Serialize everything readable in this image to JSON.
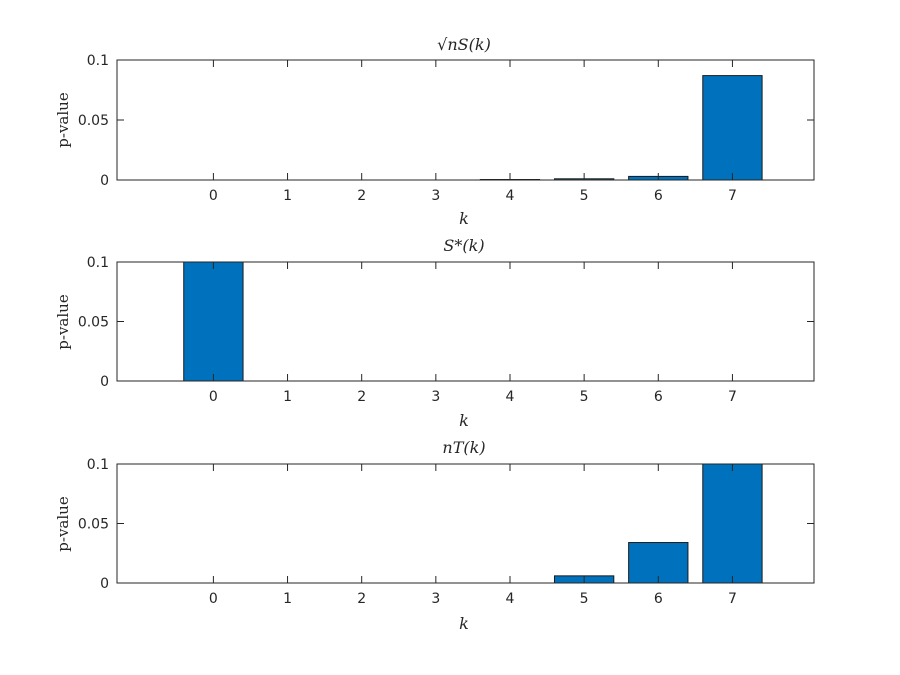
{
  "chart_data": [
    {
      "type": "bar",
      "title": "√nS(k)",
      "xlabel": "k",
      "ylabel": "p-value",
      "categories": [
        "0",
        "1",
        "2",
        "3",
        "4",
        "5",
        "6",
        "7"
      ],
      "values": [
        0,
        0,
        0,
        0,
        0.0004,
        0.001,
        0.003,
        0.087
      ],
      "xlim": [
        -1.3,
        8.1
      ],
      "ylim": [
        0,
        0.1
      ],
      "yticks": [
        0,
        0.05,
        0.1
      ],
      "ytick_labels": [
        "0",
        "0.05",
        "0.1"
      ],
      "bar_color": "#0072bd",
      "grid": false
    },
    {
      "type": "bar",
      "title": "S*(k)",
      "xlabel": "k",
      "ylabel": "p-value",
      "categories": [
        "0",
        "1",
        "2",
        "3",
        "4",
        "5",
        "6",
        "7"
      ],
      "values": [
        0.1,
        0,
        0,
        0,
        0,
        0,
        0,
        0
      ],
      "xlim": [
        -1.3,
        8.1
      ],
      "ylim": [
        0,
        0.1
      ],
      "yticks": [
        0,
        0.05,
        0.1
      ],
      "ytick_labels": [
        "0",
        "0.05",
        "0.1"
      ],
      "bar_color": "#0072bd",
      "grid": false
    },
    {
      "type": "bar",
      "title": "nT(k)",
      "xlabel": "k",
      "ylabel": "p-value",
      "categories": [
        "0",
        "1",
        "2",
        "3",
        "4",
        "5",
        "6",
        "7"
      ],
      "values": [
        0,
        0,
        0,
        0,
        0,
        0.006,
        0.034,
        0.1
      ],
      "xlim": [
        -1.3,
        8.1
      ],
      "ylim": [
        0,
        0.1
      ],
      "yticks": [
        0,
        0.05,
        0.1
      ],
      "ytick_labels": [
        "0",
        "0.05",
        "0.1"
      ],
      "bar_color": "#0072bd",
      "grid": false
    }
  ]
}
